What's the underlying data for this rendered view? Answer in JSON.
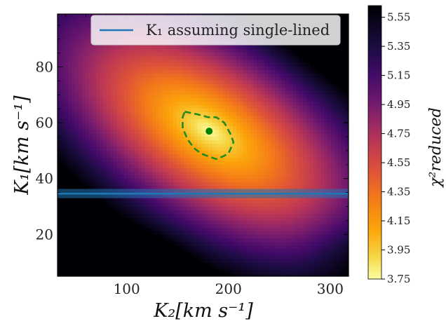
{
  "chart_data": {
    "type": "heatmap",
    "title": "",
    "xlabel": "K₂[km s⁻¹]",
    "ylabel": "K₁[km s⁻¹]",
    "xlim": [
      32,
      318
    ],
    "ylim": [
      5,
      99
    ],
    "xticks": [
      100,
      200,
      300
    ],
    "yticks": [
      20,
      40,
      60,
      80
    ],
    "colormap": "inferno_r",
    "best_fit": {
      "x": 181,
      "y": 57,
      "color": "#008000"
    },
    "contour_1sigma": {
      "style": "dashed",
      "color": "#1e8c1e",
      "points": [
        [
          157,
          64
        ],
        [
          170,
          63
        ],
        [
          180,
          62
        ],
        [
          188,
          62
        ],
        [
          196,
          60
        ],
        [
          202,
          56
        ],
        [
          205,
          53
        ],
        [
          200,
          49
        ],
        [
          195,
          48
        ],
        [
          188,
          47
        ],
        [
          180,
          48
        ],
        [
          173,
          49
        ],
        [
          166,
          51
        ],
        [
          160,
          54
        ],
        [
          155,
          58
        ],
        [
          155,
          62
        ]
      ]
    },
    "single_lined_K1": {
      "label": "K₁ assuming single-lined",
      "value": 34.6,
      "band": [
        33.0,
        36.3
      ],
      "color": "#1f77b4"
    },
    "legend_placement": "top-right",
    "grid": false,
    "colorbar": {
      "label": "χ²reduced",
      "vmin": 3.75,
      "vmax": 5.63,
      "ticks": [
        "3.75",
        "3.95",
        "4.15",
        "4.35",
        "4.55",
        "4.75",
        "4.95",
        "5.15",
        "5.35",
        "5.55"
      ]
    }
  }
}
